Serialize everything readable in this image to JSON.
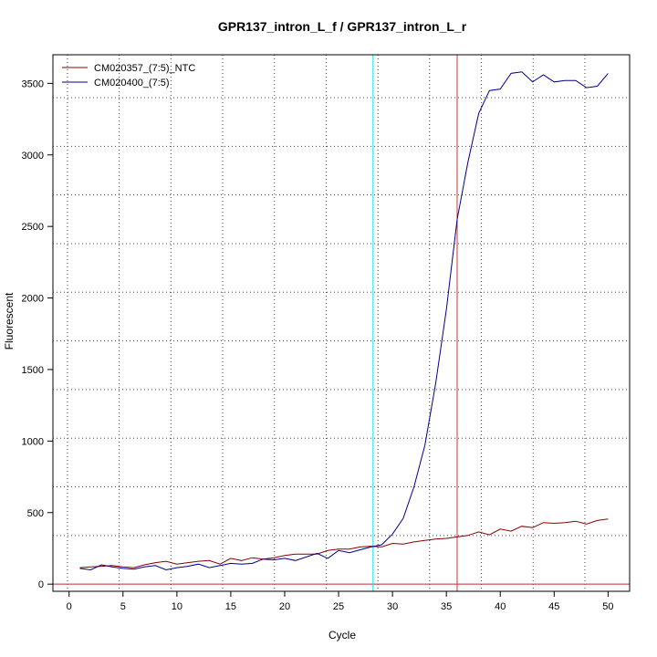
{
  "chart_data": {
    "type": "line",
    "title": "GPR137_intron_L_f / GPR137_intron_L_r",
    "xlabel": "Cycle",
    "ylabel": "Fluorescent",
    "xlim": [
      -1.5,
      52
    ],
    "ylim": [
      -50,
      3700
    ],
    "xticks": [
      0,
      5,
      10,
      15,
      20,
      25,
      30,
      35,
      40,
      45,
      50
    ],
    "yticks": [
      0,
      500,
      1000,
      1500,
      2000,
      2500,
      3000,
      3500
    ],
    "grid": "dotted",
    "legend_position": "top-left",
    "x": [
      1,
      2,
      3,
      4,
      5,
      6,
      7,
      8,
      9,
      10,
      11,
      12,
      13,
      14,
      15,
      16,
      17,
      18,
      19,
      20,
      21,
      22,
      23,
      24,
      25,
      26,
      27,
      28,
      29,
      30,
      31,
      32,
      33,
      34,
      35,
      36,
      37,
      38,
      39,
      40,
      41,
      42,
      43,
      44,
      45,
      46,
      47,
      48,
      49,
      50
    ],
    "series": [
      {
        "name": "CM020357_(7:5)_NTC",
        "color": "#8b0000",
        "values": [
          115,
          120,
          125,
          130,
          120,
          115,
          135,
          150,
          160,
          140,
          150,
          160,
          165,
          140,
          180,
          165,
          185,
          175,
          185,
          200,
          210,
          210,
          210,
          235,
          245,
          245,
          260,
          265,
          260,
          285,
          280,
          295,
          305,
          315,
          320,
          330,
          340,
          365,
          345,
          385,
          370,
          405,
          395,
          430,
          425,
          430,
          440,
          420,
          445,
          455
        ]
      },
      {
        "name": "CM020400_(7:5)",
        "color": "#00008b",
        "values": [
          110,
          100,
          135,
          120,
          110,
          105,
          120,
          130,
          100,
          115,
          125,
          140,
          115,
          130,
          145,
          140,
          145,
          175,
          170,
          180,
          165,
          190,
          215,
          180,
          235,
          220,
          240,
          260,
          275,
          350,
          460,
          680,
          970,
          1400,
          1920,
          2550,
          2950,
          3290,
          3450,
          3460,
          3570,
          3580,
          3510,
          3560,
          3510,
          3520,
          3520,
          3470,
          3480,
          3570
        ]
      }
    ],
    "hlines": [
      {
        "y": 0,
        "color": "#cd3333"
      }
    ],
    "vlines": [
      {
        "x": 28.2,
        "color": "#00e5ee"
      },
      {
        "x": 36,
        "color": "#cd3333"
      }
    ]
  },
  "legend": {
    "items": [
      "CM020357_(7:5)_NTC",
      "CM020400_(7:5)"
    ]
  }
}
